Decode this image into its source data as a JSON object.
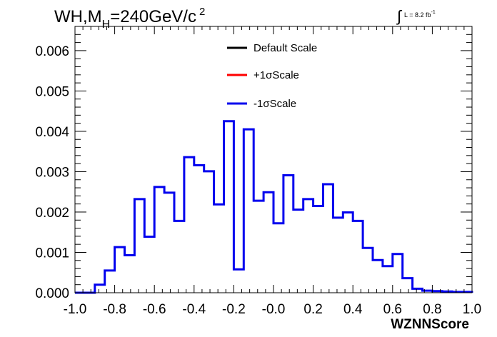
{
  "title": {
    "prefix": "WH,M",
    "subscript": "H",
    "value": "=240GeV/c",
    "superscript": "2"
  },
  "luminosity": {
    "text": "L = 8.2 fb",
    "superscript": "-1"
  },
  "chart_data": {
    "type": "line",
    "style": "step histogram",
    "xlabel": "WZNNScore",
    "ylabel": "",
    "xlim": [
      -1.0,
      1.0
    ],
    "ylim": [
      0.0,
      0.0066
    ],
    "x_ticks": [
      "-1.0",
      "-0.8",
      "-0.6",
      "-0.4",
      "-0.2",
      "-0.0",
      "0.2",
      "0.4",
      "0.6",
      "0.8",
      "1.0"
    ],
    "y_ticks": [
      "0.000",
      "0.001",
      "0.002",
      "0.003",
      "0.004",
      "0.005",
      "0.006"
    ],
    "bin_edges": [
      -1.0,
      -0.95,
      -0.9,
      -0.85,
      -0.8,
      -0.75,
      -0.7,
      -0.65,
      -0.6,
      -0.55,
      -0.5,
      -0.45,
      -0.4,
      -0.35,
      -0.3,
      -0.25,
      -0.2,
      -0.15,
      -0.1,
      -0.05,
      0.0,
      0.05,
      0.1,
      0.15,
      0.2,
      0.25,
      0.3,
      0.35,
      0.4,
      0.45,
      0.5,
      0.55,
      0.6,
      0.65,
      0.7,
      0.75,
      0.8,
      0.85,
      0.9,
      0.95,
      1.0
    ],
    "legend_position": "top-center",
    "series": [
      {
        "name": "Default Scale",
        "color": "#000000",
        "values": [
          0.0,
          0.0,
          0.0002,
          0.00055,
          0.00113,
          0.00093,
          0.00232,
          0.00139,
          0.00262,
          0.00248,
          0.00178,
          0.00336,
          0.00316,
          0.00301,
          0.00219,
          0.00425,
          0.00058,
          0.00405,
          0.00228,
          0.00249,
          0.00172,
          0.00291,
          0.00206,
          0.00232,
          0.00215,
          0.00269,
          0.00186,
          0.00199,
          0.00178,
          0.00111,
          0.00081,
          0.00066,
          0.00096,
          0.00036,
          0.0001,
          5e-05,
          4e-05,
          3e-05,
          2e-05,
          2e-05
        ]
      },
      {
        "name": "+1σScale",
        "color": "#ff0000",
        "values": [
          0.0,
          0.0,
          0.0002,
          0.00055,
          0.00113,
          0.00093,
          0.00232,
          0.00139,
          0.00262,
          0.00248,
          0.00178,
          0.00336,
          0.00316,
          0.00301,
          0.00219,
          0.00425,
          0.00058,
          0.00405,
          0.00228,
          0.00249,
          0.00172,
          0.00291,
          0.00206,
          0.00232,
          0.00215,
          0.00269,
          0.00186,
          0.00199,
          0.00178,
          0.00111,
          0.00081,
          0.00066,
          0.00096,
          0.00036,
          0.0001,
          5e-05,
          4e-05,
          3e-05,
          2e-05,
          2e-05
        ]
      },
      {
        "name": "-1σScale",
        "color": "#0000ee",
        "values": [
          0.0,
          0.0,
          0.0002,
          0.00055,
          0.00113,
          0.00093,
          0.00232,
          0.00139,
          0.00262,
          0.00248,
          0.00178,
          0.00336,
          0.00316,
          0.00301,
          0.00219,
          0.00425,
          0.00058,
          0.00405,
          0.00228,
          0.00249,
          0.00172,
          0.00291,
          0.00206,
          0.00232,
          0.00215,
          0.00269,
          0.00186,
          0.00199,
          0.00178,
          0.00111,
          0.00081,
          0.00066,
          0.00096,
          0.00036,
          0.0001,
          5e-05,
          4e-05,
          3e-05,
          2e-05,
          2e-05
        ]
      }
    ]
  }
}
